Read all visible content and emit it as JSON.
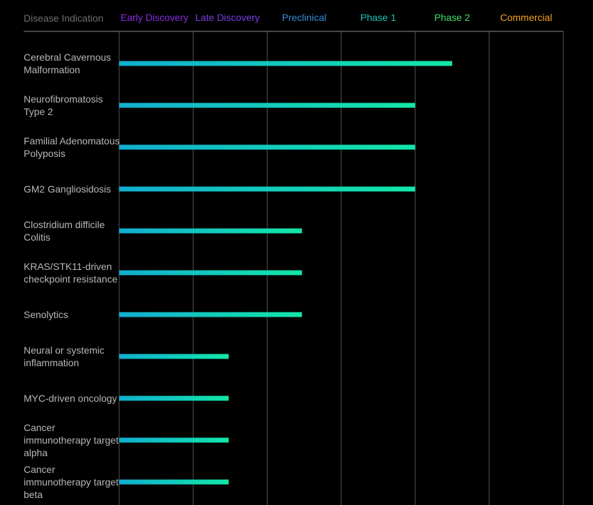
{
  "chart_data": {
    "type": "bar",
    "orientation": "horizontal",
    "first_column_header": "Disease Indication",
    "stages": [
      {
        "label": "Early Discovery",
        "color": "#8a2be2"
      },
      {
        "label": "Late Discovery",
        "color": "#7b3fe4"
      },
      {
        "label": "Preclinical",
        "color": "#3a8dde"
      },
      {
        "label": "Phase 1",
        "color": "#17c8b4"
      },
      {
        "label": "Phase 2",
        "color": "#3ee06a"
      },
      {
        "label": "Commercial",
        "color": "#f5a31a"
      }
    ],
    "categories": [
      [
        "Cerebral Cavernous",
        "Malformation"
      ],
      [
        "Neurofibromatosis",
        "Type 2"
      ],
      [
        "Familial Adenomatous",
        "Polyposis"
      ],
      [
        "GM2 Gangliosidosis"
      ],
      [
        "Clostridium difficile",
        "Colitis"
      ],
      [
        "KRAS/STK11-driven",
        "checkpoint resistance"
      ],
      [
        "Senolytics"
      ],
      [
        "Neural or systemic",
        "inflammation"
      ],
      [
        "MYC-driven oncology"
      ],
      [
        "Cancer",
        "immunotherapy target",
        "alpha"
      ],
      [
        "Cancer",
        "immunotherapy target",
        "beta"
      ]
    ],
    "progress_stages": [
      4.5,
      4.0,
      4.0,
      4.0,
      2.47,
      2.47,
      2.47,
      1.48,
      1.48,
      1.48,
      1.48
    ],
    "bar_gradient": [
      "#12aed0",
      "#12e8a8"
    ],
    "header_text_color": "#6f6f6f",
    "label_color": "#b8b8b8",
    "grid_color": "#555555",
    "header_rule_color": "#8a8a8a"
  }
}
